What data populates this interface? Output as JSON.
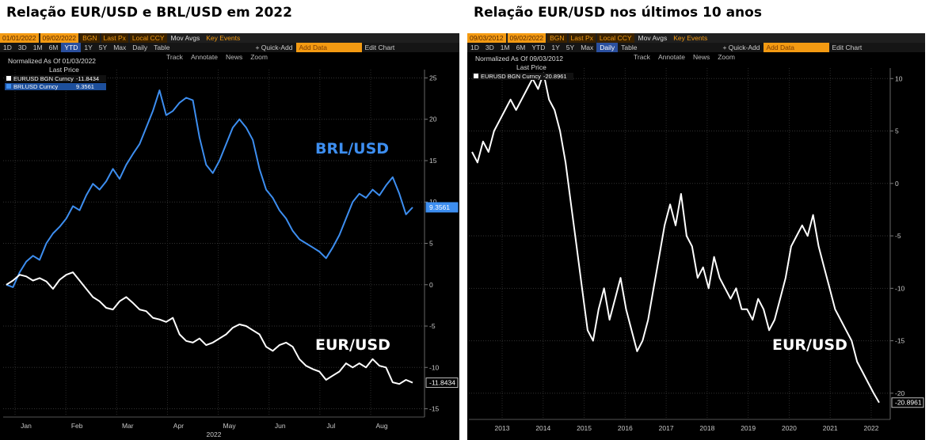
{
  "titles": {
    "left": "Relação EUR/USD e BRL/USD em 2022",
    "right": "Relação EUR/USD nos últimos 10 anos"
  },
  "colors": {
    "eur": "#ffffff",
    "brl": "#3d8ef0",
    "toolbar_accent": "#f39a12"
  },
  "chart_data": [
    {
      "type": "line",
      "title": "Relação EUR/USD e BRL/USD em 2022",
      "toolbar": {
        "start_date": "01/01/2022",
        "end_date": "09/02/2022",
        "source": "BGN",
        "field": "Last Px",
        "currency": "Local CCY",
        "mov_avgs": "Mov Avgs",
        "key_events": "Key Events",
        "periods": [
          "1D",
          "3D",
          "1M",
          "6M",
          "YTD",
          "1Y",
          "5Y",
          "Max"
        ],
        "selected_period": "YTD",
        "frequency": "Daily",
        "table": "Table",
        "quick_add": "+ Quick-Add",
        "add_data": "Add Data",
        "edit_chart": "Edit Chart",
        "tools": [
          "Track",
          "Annotate",
          "News",
          "Zoom"
        ]
      },
      "legend": {
        "normalized": "Normalized As Of 01/03/2022",
        "last_price": "Last Price",
        "entries": [
          {
            "name": "EURUSD BGN Curncy",
            "value": "-11.8434"
          },
          {
            "name": "BRLUSD Curncy",
            "value": "9.3561"
          }
        ]
      },
      "x_tick_labels": [
        "Jan",
        "Feb",
        "Mar",
        "Apr",
        "May",
        "Jun",
        "Jul",
        "Aug"
      ],
      "x_year_label": "2022",
      "y_ticks": [
        25,
        20,
        15,
        10,
        5,
        0,
        -5,
        -10,
        -15
      ],
      "ylim": [
        -16,
        26
      ],
      "annotations": [
        "BRL/USD",
        "EUR/USD"
      ],
      "series": [
        {
          "name": "BRL/USD",
          "last_value": "9.3561",
          "values": [
            0,
            -0.3,
            1.5,
            2.8,
            3.5,
            3.0,
            5.0,
            6.2,
            7.0,
            8.0,
            9.5,
            9.0,
            10.8,
            12.2,
            11.5,
            12.5,
            14.0,
            12.8,
            14.5,
            15.8,
            17.0,
            19.0,
            21.0,
            23.5,
            20.5,
            21.0,
            22.0,
            22.6,
            22.3,
            17.8,
            14.5,
            13.5,
            15.0,
            17.0,
            19.0,
            20.0,
            19.0,
            17.5,
            14.0,
            11.5,
            10.5,
            9.0,
            8.0,
            6.5,
            5.5,
            5.0,
            4.5,
            4.0,
            3.2,
            4.5,
            6.0,
            8.0,
            10.0,
            11.0,
            10.5,
            11.5,
            10.8,
            12.0,
            13.0,
            11.0,
            8.5,
            9.3561
          ]
        },
        {
          "name": "EUR/USD",
          "last_value": "-11.8434",
          "values": [
            0,
            0.5,
            1.2,
            1.0,
            0.5,
            0.8,
            0.4,
            -0.5,
            0.6,
            1.2,
            1.5,
            0.5,
            -0.5,
            -1.5,
            -2.0,
            -2.8,
            -3.0,
            -2.0,
            -1.5,
            -2.2,
            -3.0,
            -3.2,
            -4.0,
            -4.2,
            -4.5,
            -4.0,
            -6.0,
            -6.8,
            -7.0,
            -6.5,
            -7.3,
            -7.0,
            -6.5,
            -6.0,
            -5.2,
            -4.8,
            -5.0,
            -5.5,
            -6.0,
            -7.5,
            -8.0,
            -7.3,
            -7.0,
            -7.5,
            -9.0,
            -9.8,
            -10.2,
            -10.5,
            -11.5,
            -11.0,
            -10.5,
            -9.5,
            -10.0,
            -9.5,
            -10.0,
            -9.0,
            -9.8,
            -10.0,
            -11.8,
            -12.0,
            -11.5,
            -11.8434
          ]
        }
      ]
    },
    {
      "type": "line",
      "title": "Relação EUR/USD nos últimos 10 anos",
      "toolbar": {
        "start_date": "09/03/2012",
        "end_date": "09/02/2022",
        "source": "BGN",
        "field": "Last Px",
        "currency": "Local CCY",
        "mov_avgs": "Mov Avgs",
        "key_events": "Key Events",
        "periods": [
          "1D",
          "3D",
          "1M",
          "6M",
          "YTD",
          "1Y",
          "5Y",
          "Max"
        ],
        "selected_period": "Daily",
        "frequency": "Daily",
        "table": "Table",
        "quick_add": "+ Quick-Add",
        "add_data": "Add Data",
        "edit_chart": "Edit Chart",
        "tools": [
          "Track",
          "Annotate",
          "News",
          "Zoom"
        ]
      },
      "legend": {
        "normalized": "Normalized As Of 09/03/2012",
        "last_price": "Last Price",
        "entries": [
          {
            "name": "EURUSD BGN Curncy",
            "value": "-20.8961"
          }
        ]
      },
      "x_tick_labels": [
        "2013",
        "2014",
        "2015",
        "2016",
        "2017",
        "2018",
        "2019",
        "2020",
        "2021",
        "2022"
      ],
      "y_ticks": [
        10,
        5,
        0,
        -5,
        -10,
        -15,
        -20
      ],
      "ylim": [
        -22.5,
        11
      ],
      "annotations": [
        "EUR/USD"
      ],
      "series": [
        {
          "name": "EUR/USD",
          "last_value": "-20.8961",
          "values": [
            3,
            2,
            4,
            3,
            5,
            6,
            7,
            8,
            7,
            8,
            9,
            10,
            9,
            10.5,
            8,
            7,
            5,
            2,
            -2,
            -6,
            -10,
            -14,
            -15,
            -12,
            -10,
            -13,
            -11,
            -9,
            -12,
            -14,
            -16,
            -15,
            -13,
            -10,
            -7,
            -4,
            -2,
            -4,
            -1,
            -5,
            -6,
            -9,
            -8,
            -10,
            -7,
            -9,
            -10,
            -11,
            -10,
            -12,
            -12,
            -13,
            -11,
            -12,
            -14,
            -13,
            -11,
            -9,
            -6,
            -5,
            -4,
            -5,
            -3,
            -6,
            -8,
            -10,
            -12,
            -13,
            -14,
            -15,
            -17,
            -18,
            -19,
            -20,
            -20.8961
          ]
        }
      ]
    }
  ]
}
